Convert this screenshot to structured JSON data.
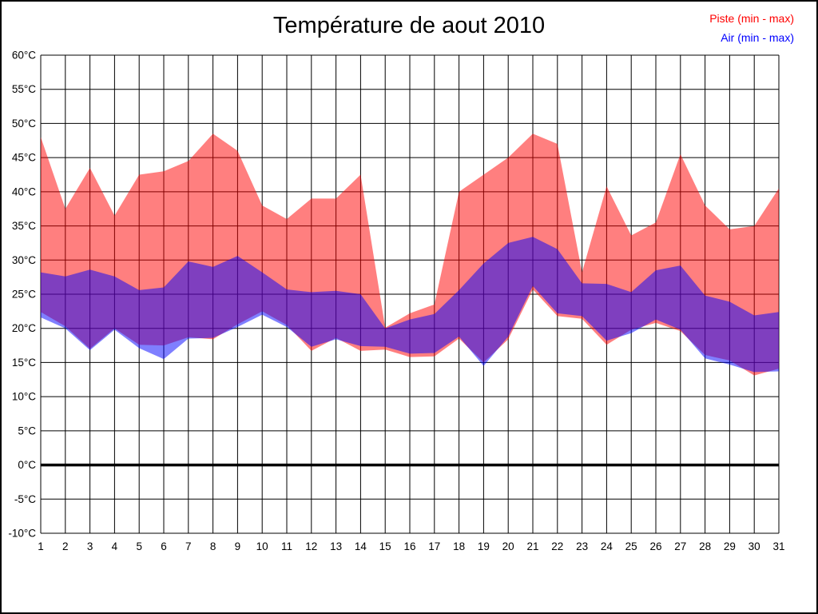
{
  "title": "Température de aout 2010",
  "legend": [
    {
      "label": "Piste (min - max)",
      "color": "#ff0000"
    },
    {
      "label": "Air (min - max)",
      "color": "#0000ff"
    }
  ],
  "colors": {
    "background": "#ffffff",
    "grid": "#000000",
    "zero_line": "#000000",
    "piste": "#ff0000",
    "air": "#0000ff",
    "fill_opacity": 0.5,
    "tick_text": "#000000"
  },
  "chart_data": {
    "type": "area",
    "subtype": "min-max-band",
    "title": "Température de aout 2010",
    "xlabel": "",
    "ylabel": "°C",
    "grid": true,
    "legend_position": "top-right",
    "x": [
      1,
      2,
      3,
      4,
      5,
      6,
      7,
      8,
      9,
      10,
      11,
      12,
      13,
      14,
      15,
      16,
      17,
      18,
      19,
      20,
      21,
      22,
      23,
      24,
      25,
      26,
      27,
      28,
      29,
      30,
      31
    ],
    "y_axis": {
      "min": -10,
      "max": 60,
      "step": 5,
      "tick_labels": [
        "60°C",
        "55°C",
        "50°C",
        "45°C",
        "40°C",
        "35°C",
        "30°C",
        "25°C",
        "20°C",
        "15°C",
        "10°C",
        "5°C",
        "0°C",
        "-5°C",
        "-10°C"
      ],
      "zero_line_bold": true
    },
    "series": [
      {
        "name": "Piste (min - max)",
        "color": "#ff0000",
        "max": [
          48,
          37.5,
          43.5,
          36.5,
          42.5,
          43,
          44.5,
          48.5,
          46,
          38,
          36,
          39,
          39,
          42.5,
          20.1,
          22.2,
          23.5,
          40,
          42.5,
          45,
          48.5,
          47,
          28.2,
          40.8,
          33.6,
          35.5,
          45.5,
          38,
          34.5,
          35,
          40.5
        ],
        "min": [
          22.4,
          20.3,
          17,
          20,
          17.6,
          17.5,
          18.7,
          18.4,
          20.6,
          22.5,
          20.5,
          16.7,
          18.6,
          16.7,
          16.9,
          15.8,
          15.9,
          18.5,
          15,
          18.4,
          25.7,
          21.8,
          21.4,
          17.6,
          19.8,
          20.8,
          19.6,
          16.1,
          15.3,
          13.1,
          14.1
        ]
      },
      {
        "name": "Air (min - max)",
        "color": "#0000ff",
        "max": [
          28.2,
          27.6,
          28.6,
          27.6,
          25.6,
          26,
          29.8,
          29,
          30.6,
          28.2,
          25.7,
          25.3,
          25.5,
          25,
          20,
          21.3,
          22.1,
          25.6,
          29.5,
          32.5,
          33.4,
          31.6,
          26.6,
          26.5,
          25.3,
          28.5,
          29.2,
          24.8,
          23.9,
          21.9,
          22.4
        ],
        "min": [
          21.6,
          20,
          16.8,
          19.8,
          17.1,
          15.5,
          18.5,
          18.6,
          20.2,
          22,
          20.2,
          17.3,
          18.4,
          17.4,
          17.3,
          16.3,
          16.4,
          18.8,
          14.5,
          18.8,
          26.2,
          22.2,
          21.8,
          18.2,
          19.3,
          21.3,
          19.8,
          15.6,
          14.7,
          13.6,
          13.7
        ]
      }
    ]
  }
}
